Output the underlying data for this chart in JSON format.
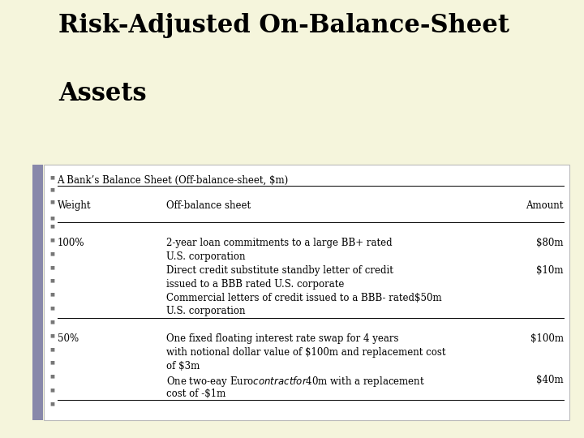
{
  "title_line1": "Risk-Adjusted On-Balance-Sheet",
  "title_line2": "Assets",
  "slide_bg": "#F5F5DC",
  "box_bg": "#FFFFFF",
  "title_color": "#000000",
  "subtitle": "A Bank’s Balance Sheet (Off-balance-sheet, $m)",
  "col_headers": [
    "Weight",
    "Off-balance sheet",
    "Amount"
  ],
  "separator_color": "#000000",
  "bullet_color": "#777777",
  "text_color": "#000000",
  "accent_color": "#8888AA",
  "font_size_title": 22,
  "font_size_body": 8.5,
  "font_size_header": 8.5,
  "rows_group1": [
    [
      "100%",
      "2-year loan commitments to a large BB+ rated",
      "$80m"
    ],
    [
      "",
      "U.S. corporation",
      ""
    ],
    [
      "",
      "Direct credit substitute standby letter of credit",
      "$10m"
    ],
    [
      "",
      "issued to a BBB rated U.S. corporate",
      ""
    ],
    [
      "",
      "Commercial letters of credit issued to a BBB- rated$50m",
      ""
    ],
    [
      "",
      "U.S. corporation",
      ""
    ]
  ],
  "rows_group2": [
    [
      "50%",
      "One fixed floating interest rate swap for 4 years",
      "$100m"
    ],
    [
      "",
      "with notional dollar value of $100m and replacement cost",
      ""
    ],
    [
      "",
      "of $3m",
      ""
    ],
    [
      "",
      "One two-eay Euro$ contract for $40m with a replacement",
      "$40m"
    ],
    [
      "",
      "cost of -$1m",
      ""
    ]
  ]
}
